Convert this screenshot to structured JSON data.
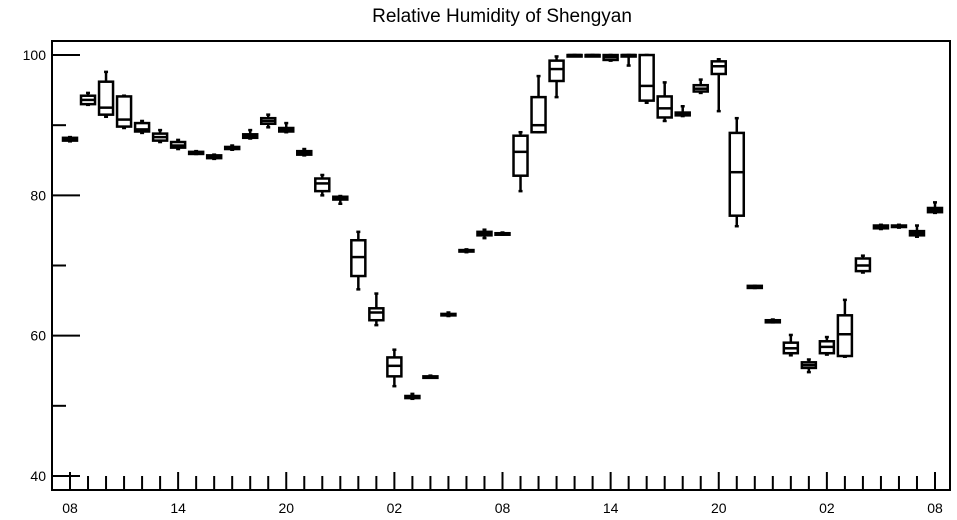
{
  "chart_data": {
    "type": "boxplot",
    "title": "Relative Humidity of Shengyan",
    "xlabel": "",
    "ylabel": "",
    "ylim": [
      38,
      102
    ],
    "yticks": [
      40,
      60,
      80,
      100
    ],
    "x_tick_labels": [
      "08",
      "14",
      "20",
      "02",
      "08",
      "14",
      "20",
      "02",
      "08"
    ],
    "x_tick_hours": [
      0,
      6,
      12,
      18,
      24,
      30,
      36,
      42,
      48
    ],
    "grid": false,
    "series": [
      {
        "hour": 0,
        "min": 87.7,
        "q1": 87.8,
        "median": 88.0,
        "q3": 88.2,
        "max": 88.3
      },
      {
        "hour": 1,
        "min": 92.9,
        "q1": 93.0,
        "median": 93.6,
        "q3": 94.2,
        "max": 94.6
      },
      {
        "hour": 2,
        "min": 91.2,
        "q1": 91.5,
        "median": 92.5,
        "q3": 96.2,
        "max": 97.6
      },
      {
        "hour": 3,
        "min": 89.6,
        "q1": 89.8,
        "median": 90.8,
        "q3": 94.1,
        "max": 94.2
      },
      {
        "hour": 4,
        "min": 88.9,
        "q1": 89.1,
        "median": 89.4,
        "q3": 90.3,
        "max": 90.6
      },
      {
        "hour": 5,
        "min": 87.6,
        "q1": 87.8,
        "median": 88.3,
        "q3": 88.8,
        "max": 89.3
      },
      {
        "hour": 6,
        "min": 86.6,
        "q1": 86.8,
        "median": 87.1,
        "q3": 87.6,
        "max": 87.9
      },
      {
        "hour": 7,
        "min": 85.9,
        "q1": 85.9,
        "median": 86.1,
        "q3": 86.2,
        "max": 86.3
      },
      {
        "hour": 8,
        "min": 85.2,
        "q1": 85.3,
        "median": 85.5,
        "q3": 85.7,
        "max": 85.8
      },
      {
        "hour": 9,
        "min": 86.5,
        "q1": 86.6,
        "median": 86.8,
        "q3": 86.9,
        "max": 87.1
      },
      {
        "hour": 10,
        "min": 88.1,
        "q1": 88.2,
        "median": 88.4,
        "q3": 88.7,
        "max": 89.3
      },
      {
        "hour": 11,
        "min": 89.7,
        "q1": 90.2,
        "median": 90.6,
        "q3": 91.0,
        "max": 91.5
      },
      {
        "hour": 12,
        "min": 89.0,
        "q1": 89.1,
        "median": 89.3,
        "q3": 89.6,
        "max": 90.3
      },
      {
        "hour": 13,
        "min": 85.7,
        "q1": 85.8,
        "median": 86.1,
        "q3": 86.3,
        "max": 86.6
      },
      {
        "hour": 14,
        "min": 80.0,
        "q1": 80.6,
        "median": 81.7,
        "q3": 82.4,
        "max": 82.9
      },
      {
        "hour": 15,
        "min": 78.8,
        "q1": 79.4,
        "median": 79.7,
        "q3": 79.8,
        "max": 79.9
      },
      {
        "hour": 16,
        "min": 66.6,
        "q1": 68.5,
        "median": 71.2,
        "q3": 73.6,
        "max": 74.8
      },
      {
        "hour": 17,
        "min": 61.5,
        "q1": 62.2,
        "median": 63.3,
        "q3": 63.9,
        "max": 66.0
      },
      {
        "hour": 18,
        "min": 52.8,
        "q1": 54.2,
        "median": 55.7,
        "q3": 56.9,
        "max": 58.0
      },
      {
        "hour": 19,
        "min": 51.0,
        "q1": 51.1,
        "median": 51.2,
        "q3": 51.4,
        "max": 51.7
      },
      {
        "hour": 20,
        "min": 54.0,
        "q1": 54.0,
        "median": 54.1,
        "q3": 54.2,
        "max": 54.3
      },
      {
        "hour": 21,
        "min": 62.8,
        "q1": 62.9,
        "median": 63.0,
        "q3": 63.1,
        "max": 63.3
      },
      {
        "hour": 22,
        "min": 71.9,
        "q1": 72.0,
        "median": 72.1,
        "q3": 72.2,
        "max": 72.3
      },
      {
        "hour": 23,
        "min": 73.9,
        "q1": 74.3,
        "median": 74.6,
        "q3": 74.8,
        "max": 75.1
      },
      {
        "hour": 24,
        "min": 74.4,
        "q1": 74.5,
        "median": 74.6,
        "q3": 74.6,
        "max": 74.7
      },
      {
        "hour": 25,
        "min": 80.6,
        "q1": 82.8,
        "median": 86.2,
        "q3": 88.5,
        "max": 89.0
      },
      {
        "hour": 26,
        "min": 89.0,
        "q1": 89.0,
        "median": 90.0,
        "q3": 94.0,
        "max": 97.0
      },
      {
        "hour": 27,
        "min": 94.0,
        "q1": 96.3,
        "median": 98.0,
        "q3": 99.2,
        "max": 99.8
      },
      {
        "hour": 28,
        "min": 99.9,
        "q1": 100.0,
        "median": 100.0,
        "q3": 100.0,
        "max": 100.0
      },
      {
        "hour": 29,
        "min": 99.9,
        "q1": 100.0,
        "median": 100.0,
        "q3": 100.0,
        "max": 100.0
      },
      {
        "hour": 30,
        "min": 99.2,
        "q1": 99.3,
        "median": 99.7,
        "q3": 100.0,
        "max": 100.0
      },
      {
        "hour": 31,
        "min": 98.5,
        "q1": 100.0,
        "median": 100.0,
        "q3": 100.0,
        "max": 100.0
      },
      {
        "hour": 32,
        "min": 93.2,
        "q1": 93.5,
        "median": 95.6,
        "q3": 100.0,
        "max": 100.0
      },
      {
        "hour": 33,
        "min": 90.6,
        "q1": 91.1,
        "median": 92.4,
        "q3": 94.1,
        "max": 96.1
      },
      {
        "hour": 34,
        "min": 91.3,
        "q1": 91.4,
        "median": 91.6,
        "q3": 91.8,
        "max": 92.7
      },
      {
        "hour": 35,
        "min": 94.6,
        "q1": 94.8,
        "median": 95.2,
        "q3": 95.7,
        "max": 96.5
      },
      {
        "hour": 36,
        "min": 92.0,
        "q1": 97.3,
        "median": 98.4,
        "q3": 99.1,
        "max": 99.4
      },
      {
        "hour": 37,
        "min": 75.6,
        "q1": 77.1,
        "median": 83.3,
        "q3": 88.9,
        "max": 91.0
      },
      {
        "hour": 38,
        "min": 66.8,
        "q1": 66.8,
        "median": 67.0,
        "q3": 67.1,
        "max": 67.1
      },
      {
        "hour": 39,
        "min": 61.9,
        "q1": 61.9,
        "median": 62.0,
        "q3": 62.2,
        "max": 62.3
      },
      {
        "hour": 40,
        "min": 57.2,
        "q1": 57.5,
        "median": 58.2,
        "q3": 59.0,
        "max": 60.1
      },
      {
        "hour": 41,
        "min": 54.8,
        "q1": 55.4,
        "median": 55.8,
        "q3": 56.2,
        "max": 56.6
      },
      {
        "hour": 42,
        "min": 57.3,
        "q1": 57.5,
        "median": 58.4,
        "q3": 59.2,
        "max": 59.8
      },
      {
        "hour": 43,
        "min": 57.0,
        "q1": 57.1,
        "median": 60.2,
        "q3": 62.9,
        "max": 65.1
      },
      {
        "hour": 44,
        "min": 69.0,
        "q1": 69.2,
        "median": 70.0,
        "q3": 71.0,
        "max": 71.4
      },
      {
        "hour": 45,
        "min": 75.2,
        "q1": 75.3,
        "median": 75.5,
        "q3": 75.7,
        "max": 75.8
      },
      {
        "hour": 46,
        "min": 75.4,
        "q1": 75.5,
        "median": 75.6,
        "q3": 75.7,
        "max": 75.8
      },
      {
        "hour": 47,
        "min": 74.1,
        "q1": 74.3,
        "median": 74.6,
        "q3": 74.9,
        "max": 75.7
      },
      {
        "hour": 48,
        "min": 77.5,
        "q1": 77.6,
        "median": 77.9,
        "q3": 78.2,
        "max": 79.0
      }
    ]
  }
}
